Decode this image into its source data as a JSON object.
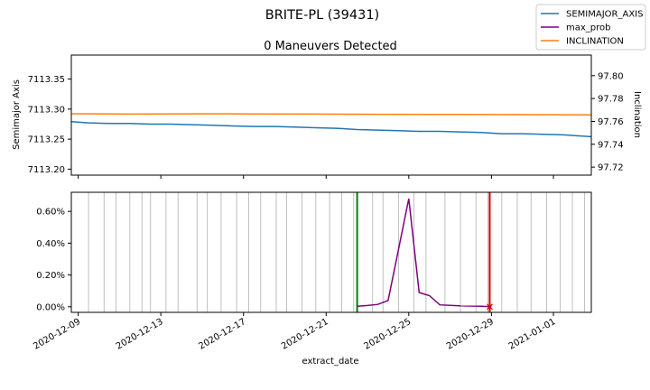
{
  "chart_data": [
    {
      "type": "line",
      "suptitle": "BRITE-PL (39431)",
      "title": "0 Maneuvers Detected",
      "xlabel": "",
      "ylabel": "Semimajor Axis",
      "y2label": "Inclination",
      "xlim": [
        "2020-12-08T16:00",
        "2021-01-02T20:00"
      ],
      "ylim": [
        7113.19,
        7113.39
      ],
      "y2lim": [
        97.713,
        97.818
      ],
      "yticks": [
        "7113.20",
        "7113.25",
        "7113.30",
        "7113.35"
      ],
      "y2ticks": [
        "97.72",
        "97.74",
        "97.76",
        "97.78",
        "97.80"
      ],
      "series": [
        {
          "name": "SEMIMAJOR_AXIS",
          "axis": "left",
          "color": "#1f77b4",
          "x": [
            "2020-12-08T16:00",
            "2020-12-09T12:00",
            "2020-12-10T12:00",
            "2020-12-11T12:00",
            "2020-12-12T12:00",
            "2020-12-13T12:00",
            "2020-12-14T12:00",
            "2020-12-15T12:00",
            "2020-12-16T12:00",
            "2020-12-17T12:00",
            "2020-12-18T12:00",
            "2020-12-19T12:00",
            "2020-12-20T12:00",
            "2020-12-21T12:00",
            "2020-12-22T12:00",
            "2020-12-23T12:00",
            "2020-12-24T12:00",
            "2020-12-25T12:00",
            "2020-12-26T12:00",
            "2020-12-27T12:00",
            "2020-12-28T12:00",
            "2020-12-29T12:00",
            "2020-12-30T12:00",
            "2020-12-31T12:00",
            "2021-01-01T12:00",
            "2021-01-02T20:00"
          ],
          "y": [
            7113.279,
            7113.277,
            7113.276,
            7113.276,
            7113.275,
            7113.275,
            7113.274,
            7113.273,
            7113.272,
            7113.271,
            7113.271,
            7113.27,
            7113.269,
            7113.268,
            7113.266,
            7113.265,
            7113.264,
            7113.263,
            7113.263,
            7113.262,
            7113.261,
            7113.259,
            7113.259,
            7113.258,
            7113.257,
            7113.254
          ]
        },
        {
          "name": "INCLINATION",
          "axis": "right",
          "color": "#ff7f0e",
          "x": [
            "2020-12-08T16:00",
            "2020-12-11T12:00",
            "2020-12-14T12:00",
            "2020-12-17T12:00",
            "2020-12-20T12:00",
            "2020-12-23T12:00",
            "2020-12-26T12:00",
            "2020-12-29T12:00",
            "2021-01-01T12:00",
            "2021-01-02T20:00"
          ],
          "y": [
            97.7667,
            97.7664,
            97.7666,
            97.7665,
            97.7664,
            97.7662,
            97.7661,
            97.766,
            97.7658,
            97.7657
          ]
        }
      ]
    },
    {
      "type": "line",
      "xlabel": "extract_date",
      "ylabel": "",
      "xlim": [
        "2020-12-08T16:00",
        "2021-01-02T20:00"
      ],
      "ylim": [
        -0.00035,
        0.0072
      ],
      "yticks": [
        "0.00%",
        "0.20%",
        "0.40%",
        "0.60%"
      ],
      "xticks": [
        "2020-12-09",
        "2020-12-13",
        "2020-12-17",
        "2020-12-21",
        "2020-12-25",
        "2020-12-29",
        "2021-01-01"
      ],
      "series": [
        {
          "name": "max_prob",
          "color": "#800080",
          "x": [
            "2020-12-22T12:00",
            "2020-12-23T00:00",
            "2020-12-23T12:00",
            "2020-12-24T00:00",
            "2020-12-24T12:00",
            "2020-12-25T00:00",
            "2020-12-25T12:00",
            "2020-12-26T00:00",
            "2020-12-26T12:00",
            "2020-12-27T12:00",
            "2020-12-28T12:00",
            "2020-12-29T00:00"
          ],
          "y": [
            3e-05,
            8e-05,
            0.00015,
            0.0004,
            0.0036,
            0.0068,
            0.0009,
            0.0007,
            0.00012,
            6e-05,
            3e-05,
            1e-05
          ]
        }
      ],
      "vlines_gray": [
        "2020-12-09T12:00",
        "2020-12-10T06:00",
        "2020-12-10T20:00",
        "2020-12-11T12:00",
        "2020-12-12T02:00",
        "2020-12-12T12:00",
        "2020-12-13T06:00",
        "2020-12-13T20:00",
        "2020-12-14T18:00",
        "2020-12-15T06:00",
        "2020-12-15T22:00",
        "2020-12-16T16:00",
        "2020-12-17T06:00",
        "2020-12-17T20:00",
        "2020-12-18T14:00",
        "2020-12-19T02:00",
        "2020-12-19T20:00",
        "2020-12-20T12:00",
        "2020-12-21T04:00",
        "2020-12-21T18:00",
        "2020-12-22T08:00",
        "2020-12-23T06:00",
        "2020-12-23T18:00",
        "2020-12-24T12:00",
        "2020-12-25T06:00",
        "2020-12-25T20:00",
        "2020-12-26T18:00",
        "2020-12-27T12:00",
        "2020-12-28T06:00",
        "2020-12-28T20:00",
        "2020-12-29T12:00",
        "2020-12-30T06:00",
        "2020-12-30T22:00",
        "2020-12-31T16:00",
        "2021-01-01T08:00",
        "2021-01-01T22:00",
        "2021-01-02T12:00"
      ],
      "vline_green": "2020-12-22T12:00",
      "vline_red": "2020-12-28T22:00"
    }
  ],
  "legend": {
    "placement": "top-right",
    "items": [
      {
        "label": "SEMIMAJOR_AXIS",
        "color": "#1f77b4"
      },
      {
        "label": "max_prob",
        "color": "#800080"
      },
      {
        "label": "INCLINATION",
        "color": "#ff7f0e"
      }
    ]
  }
}
